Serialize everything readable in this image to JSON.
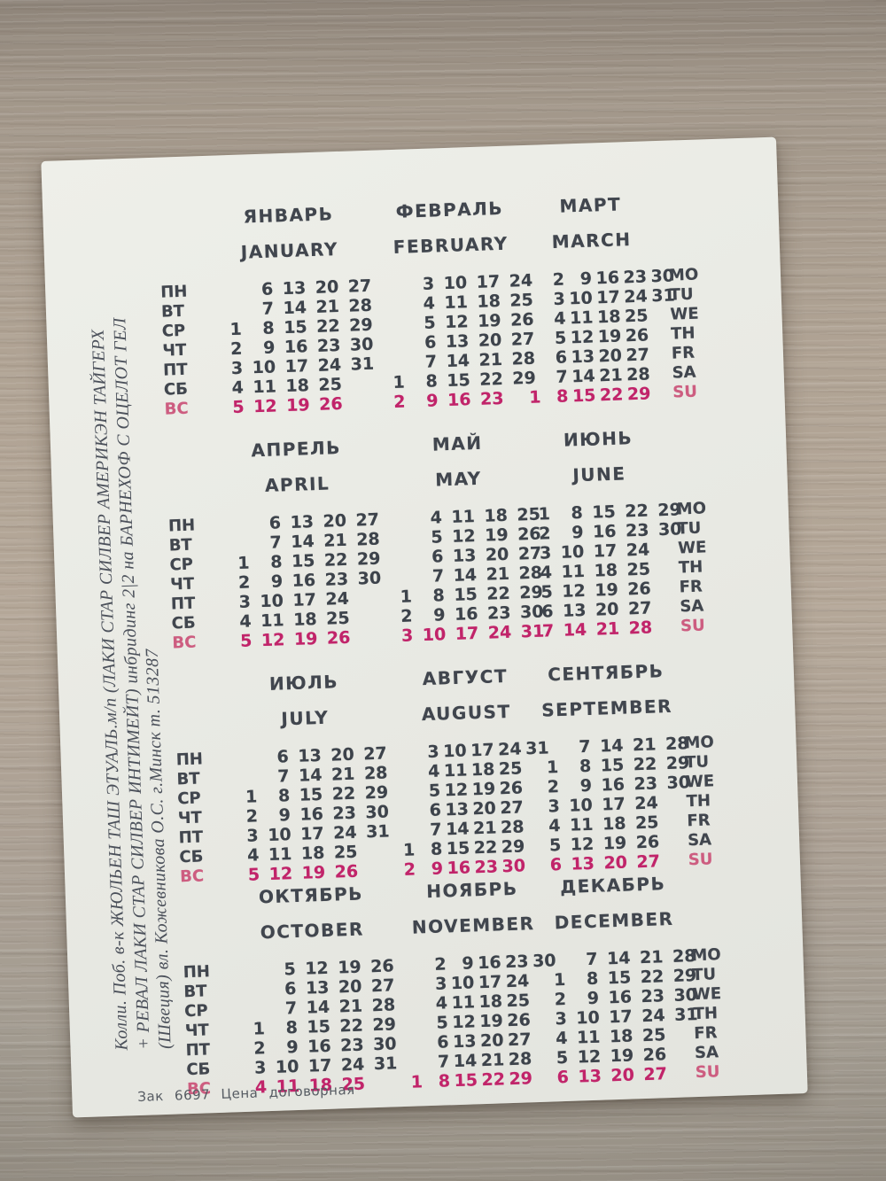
{
  "colors": {
    "ink": "#3d434b",
    "sunday_red": "#c1246a",
    "sunday_label_red": "#cd5d80",
    "card_background": "#e8e9e3",
    "wood_background": "#ab9f92"
  },
  "card": {
    "side_text_lines": [
      "Колли. Поб. в-к ЖЮЛЬЕН ТАШ ЭТУАЛЬ.м/п (ЛАКИ СТАР СИЛВЕР АМЕРИКЭН ТАЙГЕРХ",
      "+ РЕВАЛ ЛАКИ СТАР СИЛВЕР ИНТИМЕЙТ) инбридинг 2|2 на БАРНЕХОФ С ОЦЕЛОТ ГЕЛ",
      "(Швеция) вл. Кожевникова О.С. г.Минск т. 513287"
    ],
    "footer": "Зак 6697 Цена договорная",
    "day_labels_ru": [
      "ПН",
      "ВТ",
      "СР",
      "ЧТ",
      "ПТ",
      "СБ",
      "ВС"
    ],
    "day_labels_en": [
      "MO",
      "TU",
      "WE",
      "TH",
      "FR",
      "SA",
      "SU"
    ],
    "months": [
      {
        "ru": "ЯНВАРЬ",
        "en": "JANUARY",
        "cols": 5,
        "rows": [
          [
            "",
            6,
            13,
            20,
            27
          ],
          [
            "",
            7,
            14,
            21,
            28
          ],
          [
            1,
            8,
            15,
            22,
            29
          ],
          [
            2,
            9,
            16,
            23,
            30
          ],
          [
            3,
            10,
            17,
            24,
            31
          ],
          [
            4,
            11,
            18,
            25,
            ""
          ],
          [
            5,
            12,
            19,
            26,
            ""
          ]
        ]
      },
      {
        "ru": "ФЕВРАЛЬ",
        "en": "FEBRUARY",
        "cols": 5,
        "rows": [
          [
            "",
            3,
            10,
            17,
            24
          ],
          [
            "",
            4,
            11,
            18,
            25
          ],
          [
            "",
            5,
            12,
            19,
            26
          ],
          [
            "",
            6,
            13,
            20,
            27
          ],
          [
            "",
            7,
            14,
            21,
            28
          ],
          [
            1,
            8,
            15,
            22,
            29
          ],
          [
            2,
            9,
            16,
            23,
            ""
          ]
        ]
      },
      {
        "ru": "МАРТ",
        "en": "MARCH",
        "cols": 6,
        "rows": [
          [
            "",
            2,
            9,
            16,
            23,
            30
          ],
          [
            "",
            3,
            10,
            17,
            24,
            31
          ],
          [
            "",
            4,
            11,
            18,
            25,
            ""
          ],
          [
            "",
            5,
            12,
            19,
            26,
            ""
          ],
          [
            "",
            6,
            13,
            20,
            27,
            ""
          ],
          [
            "",
            7,
            14,
            21,
            28,
            ""
          ],
          [
            1,
            8,
            15,
            22,
            29,
            ""
          ]
        ]
      },
      {
        "ru": "АПРЕЛЬ",
        "en": "APRIL",
        "cols": 5,
        "rows": [
          [
            "",
            6,
            13,
            20,
            27
          ],
          [
            "",
            7,
            14,
            21,
            28
          ],
          [
            1,
            8,
            15,
            22,
            29
          ],
          [
            2,
            9,
            16,
            23,
            30
          ],
          [
            3,
            10,
            17,
            24,
            ""
          ],
          [
            4,
            11,
            18,
            25,
            ""
          ],
          [
            5,
            12,
            19,
            26,
            ""
          ]
        ]
      },
      {
        "ru": "МАЙ",
        "en": "MAY",
        "cols": 5,
        "rows": [
          [
            "",
            4,
            11,
            18,
            25
          ],
          [
            "",
            5,
            12,
            19,
            26
          ],
          [
            "",
            6,
            13,
            20,
            27
          ],
          [
            "",
            7,
            14,
            21,
            28
          ],
          [
            1,
            8,
            15,
            22,
            29
          ],
          [
            2,
            9,
            16,
            23,
            30
          ],
          [
            3,
            10,
            17,
            24,
            31
          ]
        ]
      },
      {
        "ru": "ИЮНЬ",
        "en": "JUNE",
        "cols": 5,
        "rows": [
          [
            1,
            8,
            15,
            22,
            29
          ],
          [
            2,
            9,
            16,
            23,
            30
          ],
          [
            3,
            10,
            17,
            24,
            ""
          ],
          [
            4,
            11,
            18,
            25,
            ""
          ],
          [
            5,
            12,
            19,
            26,
            ""
          ],
          [
            6,
            13,
            20,
            27,
            ""
          ],
          [
            7,
            14,
            21,
            28,
            ""
          ]
        ]
      },
      {
        "ru": "ИЮЛЬ",
        "en": "JULY",
        "cols": 5,
        "rows": [
          [
            "",
            6,
            13,
            20,
            27
          ],
          [
            "",
            7,
            14,
            21,
            28
          ],
          [
            1,
            8,
            15,
            22,
            29
          ],
          [
            2,
            9,
            16,
            23,
            30
          ],
          [
            3,
            10,
            17,
            24,
            31
          ],
          [
            4,
            11,
            18,
            25,
            ""
          ],
          [
            5,
            12,
            19,
            26,
            ""
          ]
        ]
      },
      {
        "ru": "АВГУСТ",
        "en": "AUGUST",
        "cols": 6,
        "rows": [
          [
            "",
            3,
            10,
            17,
            24,
            31
          ],
          [
            "",
            4,
            11,
            18,
            25,
            ""
          ],
          [
            "",
            5,
            12,
            19,
            26,
            ""
          ],
          [
            "",
            6,
            13,
            20,
            27,
            ""
          ],
          [
            "",
            7,
            14,
            21,
            28,
            ""
          ],
          [
            1,
            8,
            15,
            22,
            29,
            ""
          ],
          [
            2,
            9,
            16,
            23,
            30,
            ""
          ]
        ]
      },
      {
        "ru": "СЕНТЯБРЬ",
        "en": "SEPTEMBER",
        "cols": 5,
        "rows": [
          [
            "",
            7,
            14,
            21,
            28
          ],
          [
            1,
            8,
            15,
            22,
            29
          ],
          [
            2,
            9,
            16,
            23,
            30
          ],
          [
            3,
            10,
            17,
            24,
            ""
          ],
          [
            4,
            11,
            18,
            25,
            ""
          ],
          [
            5,
            12,
            19,
            26,
            ""
          ],
          [
            6,
            13,
            20,
            27,
            ""
          ]
        ]
      },
      {
        "ru": "ОКТЯБРЬ",
        "en": "OCTOBER",
        "cols": 5,
        "rows": [
          [
            "",
            5,
            12,
            19,
            26
          ],
          [
            "",
            6,
            13,
            20,
            27
          ],
          [
            "",
            7,
            14,
            21,
            28
          ],
          [
            1,
            8,
            15,
            22,
            29
          ],
          [
            2,
            9,
            16,
            23,
            30
          ],
          [
            3,
            10,
            17,
            24,
            31
          ],
          [
            4,
            11,
            18,
            25,
            ""
          ]
        ]
      },
      {
        "ru": "НОЯБРЬ",
        "en": "NOVEMBER",
        "cols": 6,
        "rows": [
          [
            "",
            2,
            9,
            16,
            23,
            30
          ],
          [
            "",
            3,
            10,
            17,
            24,
            ""
          ],
          [
            "",
            4,
            11,
            18,
            25,
            ""
          ],
          [
            "",
            5,
            12,
            19,
            26,
            ""
          ],
          [
            "",
            6,
            13,
            20,
            27,
            ""
          ],
          [
            "",
            7,
            14,
            21,
            28,
            ""
          ],
          [
            1,
            8,
            15,
            22,
            29,
            ""
          ]
        ]
      },
      {
        "ru": "ДЕКАБРЬ",
        "en": "DECEMBER",
        "cols": 5,
        "rows": [
          [
            "",
            7,
            14,
            21,
            28
          ],
          [
            1,
            8,
            15,
            22,
            29
          ],
          [
            2,
            9,
            16,
            23,
            30
          ],
          [
            3,
            10,
            17,
            24,
            31
          ],
          [
            4,
            11,
            18,
            25,
            ""
          ],
          [
            5,
            12,
            19,
            26,
            ""
          ],
          [
            6,
            13,
            20,
            27,
            ""
          ]
        ]
      }
    ]
  }
}
